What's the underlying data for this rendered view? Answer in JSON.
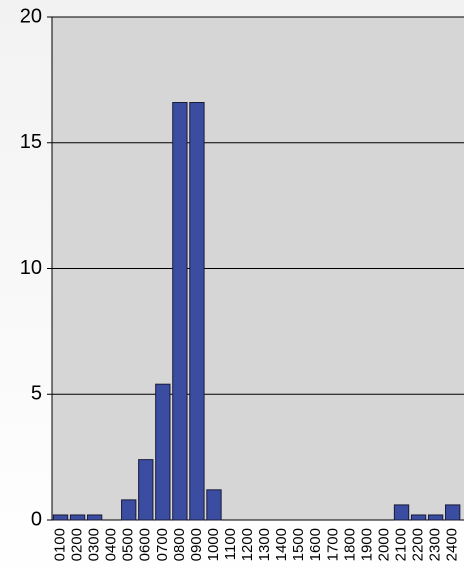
{
  "chart_data": {
    "type": "bar",
    "categories": [
      "0100",
      "0200",
      "0300",
      "0400",
      "0500",
      "0600",
      "0700",
      "0800",
      "0900",
      "1000",
      "1100",
      "1200",
      "1300",
      "1400",
      "1500",
      "1600",
      "1700",
      "1800",
      "1900",
      "2000",
      "2100",
      "2200",
      "2300",
      "2400"
    ],
    "values": [
      0.2,
      0.2,
      0.2,
      0,
      0.8,
      2.4,
      5.4,
      16.6,
      16.6,
      1.2,
      0,
      0,
      0,
      0,
      0,
      0,
      0,
      0,
      0,
      0,
      0.6,
      0.2,
      0.2,
      0.6
    ],
    "color": "#3a4da0",
    "ylim": [
      0,
      20
    ],
    "yticks": [
      0,
      5,
      10,
      15,
      20
    ],
    "grid": true
  }
}
